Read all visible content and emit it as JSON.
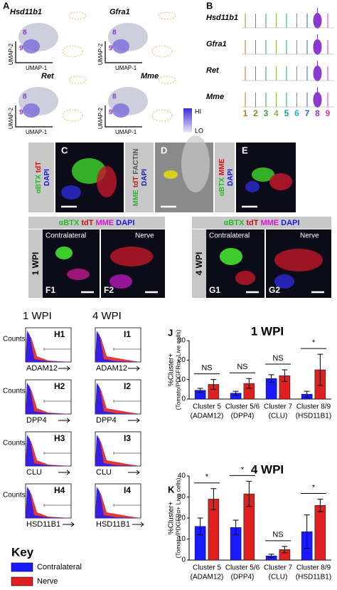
{
  "umap": {
    "panel": "A",
    "genes": [
      "Hsd11b1",
      "Gfra1",
      "Ret",
      "Mme"
    ],
    "x_label": "UMAP-1",
    "y_label": "UMAP-2",
    "clusters": [
      "8",
      "9"
    ],
    "scale": [
      "HI",
      "LO"
    ]
  },
  "violin": {
    "panel": "B",
    "clusters": [
      "1",
      "2",
      "3",
      "4",
      "5",
      "6",
      "7",
      "8",
      "9"
    ],
    "cluster_colors": [
      "#c8771c",
      "#8c8c1a",
      "#3aa03a",
      "#7fc241",
      "#1aa08c",
      "#22b4d4",
      "#2a6ad0",
      "#8a3ad0",
      "#d23ab4"
    ]
  },
  "images": [
    {
      "panel": "C",
      "stain": [
        {
          "text": "αBTX",
          "color": "#2bb52b"
        },
        {
          "text": "tdT",
          "color": "#d01010"
        },
        {
          "text": "DAPI",
          "color": "#1a1ad0"
        }
      ]
    },
    {
      "panel": "D",
      "stain": [
        {
          "text": "MME",
          "color": "#2bb52b"
        },
        {
          "text": "tdT",
          "color": "#d01010"
        },
        {
          "text": "FACTIN",
          "color": "#555555"
        },
        {
          "text": "DAPI",
          "color": "#1a1ad0"
        }
      ]
    },
    {
      "panel": "E",
      "stain": [
        {
          "text": "αBTX",
          "color": "#2bb52b"
        },
        {
          "text": "MME",
          "color": "#d01010"
        },
        {
          "text": "DAPI",
          "color": "#1a1ad0"
        }
      ]
    }
  ],
  "timecourse": {
    "stain": [
      {
        "text": "αBTX",
        "color": "#2bb52b"
      },
      {
        "text": "tdT",
        "color": "#d01010"
      },
      {
        "text": "MME",
        "color": "#d01ad0"
      },
      {
        "text": "DAPI",
        "color": "#1a1ad0"
      }
    ],
    "groups": [
      {
        "label": "1 WPI",
        "left": "Contralateral",
        "right": "Nerve",
        "left_panel": "F1",
        "right_panel": "F2"
      },
      {
        "label": "4 WPI",
        "left": "Contralateral",
        "right": "Nerve",
        "left_panel": "G1",
        "right_panel": "G2"
      }
    ]
  },
  "histograms": {
    "columns": [
      "1 WPI",
      "4 WPI"
    ],
    "y_label": "Counts",
    "rows": [
      {
        "left": "H1",
        "right": "I1",
        "marker": "ADAM12"
      },
      {
        "left": "H2",
        "right": "I2",
        "marker": "DPP4"
      },
      {
        "left": "H3",
        "right": "I3",
        "marker": "CLU"
      },
      {
        "left": "H4",
        "right": "I4",
        "marker": "HSD11B1"
      }
    ]
  },
  "key": {
    "title": "Key"
  },
  "chart_data": [
    {
      "type": "bar",
      "panel": "J",
      "title": "1 WPI",
      "y_label": [
        "%Cluster+",
        "(Tomato/PDGFRα+ Live cells)"
      ],
      "categories": [
        "Cluster 5",
        "Cluster 5/6",
        "Cluster 7",
        "Cluster 8/9"
      ],
      "sublabels": [
        "(ADAM12)",
        "(DPP4)",
        "(CLU)",
        "(HSD11B1)"
      ],
      "series": [
        {
          "name": "Contralateral",
          "color": "#1a1aff",
          "values": [
            4.5,
            3,
            10.5,
            2.5
          ],
          "errors": [
            1,
            1,
            2,
            1.5
          ]
        },
        {
          "name": "Nerve",
          "color": "#e02020",
          "values": [
            7.5,
            8,
            12,
            15
          ],
          "errors": [
            2.5,
            2.5,
            3,
            8
          ]
        }
      ],
      "significance": [
        "NS",
        "NS",
        "NS",
        "*"
      ],
      "ylim": [
        0,
        30
      ],
      "yticks": [
        0,
        10,
        20,
        30
      ]
    },
    {
      "type": "bar",
      "panel": "K",
      "title": "4 WPI",
      "y_label": [
        "%Cluster+",
        "(Tomato/PDGFRα+ Live cells)"
      ],
      "categories": [
        "Cluster 5",
        "Cluster 5/6",
        "Cluster 7",
        "Cluster 8/9"
      ],
      "sublabels": [
        "(ADAM12)",
        "(DPP4)",
        "(CLU)",
        "(HSD11B1)"
      ],
      "series": [
        {
          "color": "#1a1aff",
          "values": [
            16,
            15.5,
            2,
            13.5
          ],
          "errors": [
            4,
            3.5,
            0.8,
            8
          ]
        },
        {
          "color": "#e02020",
          "values": [
            29,
            31.5,
            5,
            26
          ],
          "errors": [
            5,
            6,
            1.5,
            3
          ]
        }
      ],
      "significance": [
        "*",
        "*",
        "NS",
        "*"
      ],
      "ylim": [
        0,
        40
      ],
      "yticks": [
        0,
        10,
        20,
        30,
        40
      ]
    }
  ]
}
